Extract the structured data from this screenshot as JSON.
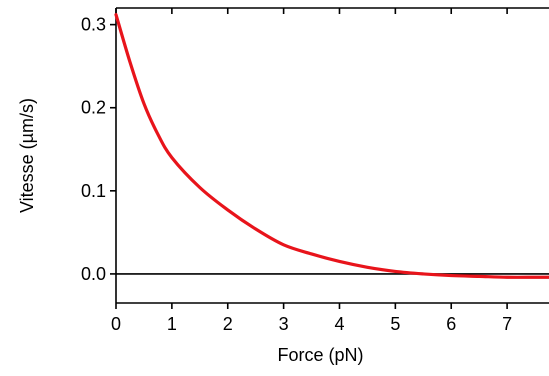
{
  "chart_data": {
    "type": "line",
    "xlabel": "Force (pN)",
    "ylabel": "Vitesse (µm/s)",
    "xlim": [
      0,
      7.75
    ],
    "ylim": [
      -0.035,
      0.32
    ],
    "xticks": [
      0,
      1,
      2,
      3,
      4,
      5,
      6,
      7
    ],
    "yticks": [
      0.0,
      0.1,
      0.2,
      0.3
    ],
    "xtick_labels": [
      "0",
      "1",
      "2",
      "3",
      "4",
      "5",
      "6",
      "7"
    ],
    "ytick_labels": [
      "0.0",
      "0.1",
      "0.2",
      "0.3"
    ],
    "reference_line_y": 0.0,
    "grid": false,
    "series": [
      {
        "color": "#e8141b",
        "x": [
          0,
          0.25,
          0.5,
          0.75,
          1,
          1.5,
          2,
          2.5,
          3,
          3.5,
          4,
          4.5,
          5,
          5.5,
          6,
          6.5,
          7,
          7.5,
          7.75
        ],
        "y": [
          0.312,
          0.255,
          0.205,
          0.168,
          0.14,
          0.104,
          0.077,
          0.054,
          0.035,
          0.024,
          0.015,
          0.008,
          0.003,
          0.0,
          -0.002,
          -0.003,
          -0.004,
          -0.004,
          -0.004
        ]
      }
    ]
  }
}
